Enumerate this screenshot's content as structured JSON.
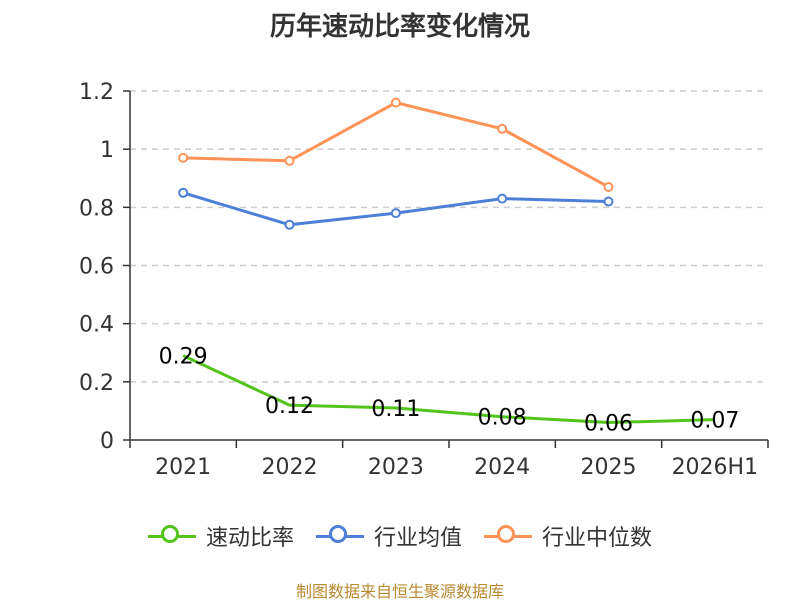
{
  "title": "历年速动比率变化情况",
  "source": "制图数据来自恒生聚源数据库",
  "chart_data": {
    "type": "line",
    "categories": [
      "2021",
      "2022",
      "2023",
      "2024",
      "2025",
      "2026H1"
    ],
    "ylim": [
      0,
      1.2
    ],
    "yticks": [
      "0",
      "0.2",
      "0.4",
      "0.6",
      "0.8",
      "1",
      "1.2"
    ],
    "grid": true,
    "legend_position": "bottom",
    "series": [
      {
        "name": "速动比率",
        "color": "#52c41a",
        "values": [
          0.29,
          0.12,
          0.11,
          0.08,
          0.06,
          0.07
        ],
        "labels": [
          "0.29",
          "0.12",
          "0.11",
          "0.08",
          "0.06",
          "0.07"
        ]
      },
      {
        "name": "行业均值",
        "color": "#4e7fd8",
        "values": [
          0.85,
          0.74,
          0.78,
          0.83,
          0.82,
          null
        ]
      },
      {
        "name": "行业中位数",
        "color": "#ff9257",
        "values": [
          0.97,
          0.96,
          1.16,
          1.07,
          0.87,
          null
        ]
      }
    ]
  }
}
